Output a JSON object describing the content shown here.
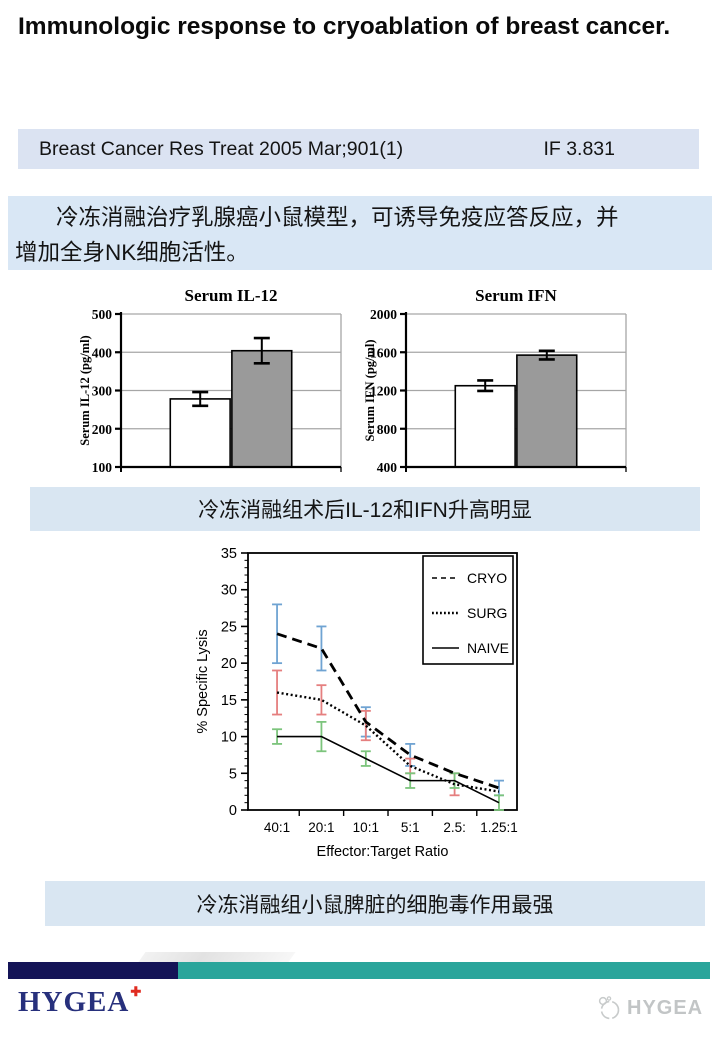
{
  "title": "Immunologic response to cryoablation of breast cancer.",
  "citation": {
    "reference": "Breast Cancer Res Treat 2005 Mar;901(1)",
    "impact_factor": "IF 3.831"
  },
  "summary": {
    "line1": "冷冻消融治疗乳腺癌小鼠模型，可诱导免疫应答反应，并",
    "line2": "增加全身NK细胞活性。"
  },
  "banners": {
    "cytokine_result": "冷冻消融组术后IL-12和IFN升高明显",
    "lysis_result": "冷冻消融组小鼠脾脏的细胞毒作用最强"
  },
  "footer": {
    "logo_text": "HYGEA",
    "logo_cross": "✚",
    "watermark_text": "HYGEA"
  },
  "colors": {
    "citation_bg": "#dbe3f2",
    "summary_bg": "#d9e7f5",
    "banner_bg": "#d9e6f2",
    "footer_navy": "#141457",
    "footer_teal": "#2aa59b",
    "logo_navy": "#27307c",
    "logo_cross_red": "#e02b20",
    "bar_fill_white": "#ffffff",
    "bar_fill_gray": "#9a9a9a",
    "gridline_gray": "#a6a6a6"
  },
  "chart_data": [
    {
      "id": "serum_il12",
      "type": "bar",
      "title": "Serum IL-12",
      "ylabel": "Serum IL-12 (pg/ml)",
      "ylim": [
        100,
        500
      ],
      "yticks": [
        100,
        200,
        300,
        400,
        500
      ],
      "grid": true,
      "bars": [
        {
          "value": 278,
          "error": 18,
          "fill": "#ffffff"
        },
        {
          "value": 404,
          "error": 33,
          "fill": "#9a9a9a"
        }
      ]
    },
    {
      "id": "serum_ifn",
      "type": "bar",
      "title": "Serum IFN",
      "ylabel": "Serum IFN (pg/ml)",
      "ylim": [
        400,
        2000
      ],
      "yticks": [
        400,
        800,
        1200,
        1600,
        2000
      ],
      "grid": true,
      "bars": [
        {
          "value": 1250,
          "error": 55,
          "fill": "#ffffff"
        },
        {
          "value": 1570,
          "error": 45,
          "fill": "#9a9a9a"
        }
      ]
    },
    {
      "id": "specific_lysis",
      "type": "line",
      "ylabel": "% Specific Lysis",
      "xlabel": "Effector:Target Ratio",
      "ylim": [
        0,
        35
      ],
      "yticks": [
        0,
        5,
        10,
        15,
        20,
        25,
        30,
        35
      ],
      "minor_tick_step": 1,
      "categories": [
        "40:1",
        "20:1",
        "10:1",
        "5:1",
        "2.5:",
        "1.25:1"
      ],
      "legend_position": "top-right",
      "series": [
        {
          "name": "CRYO",
          "line": "dashed",
          "values": [
            24,
            22,
            12,
            7.5,
            5,
            3
          ],
          "errors": [
            4,
            3,
            2,
            1.5,
            0,
            1
          ],
          "error_color": "#6fa3d2"
        },
        {
          "name": "SURG",
          "line": "dotted",
          "values": [
            16,
            15,
            11.5,
            6,
            3.5,
            2.5
          ],
          "errors": [
            3,
            2,
            2,
            1,
            1.5,
            0
          ],
          "error_color": "#e57f7f"
        },
        {
          "name": "NAIVE",
          "line": "solid",
          "values": [
            10,
            10,
            7,
            4,
            4,
            1
          ],
          "errors": [
            1,
            2,
            1,
            1,
            1,
            1
          ],
          "error_color": "#7cc47c"
        }
      ]
    }
  ]
}
